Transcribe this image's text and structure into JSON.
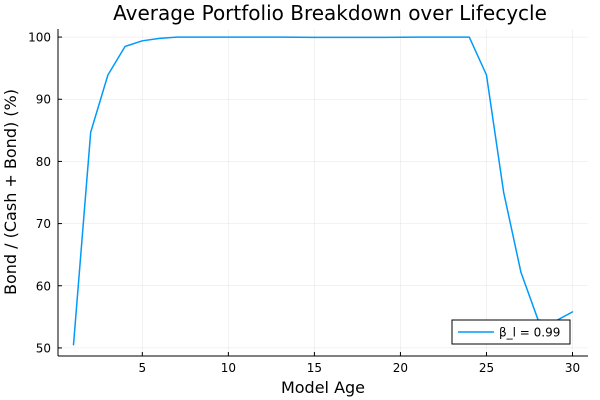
{
  "chart_data": {
    "type": "line",
    "title": "Average Portfolio Breakdown over Lifecycle",
    "xlabel": "Model Age",
    "ylabel": "Bond / (Cash + Bond) (%)",
    "xlim": [
      0.1,
      30.9
    ],
    "ylim": [
      48.7,
      101.3
    ],
    "xticks": [
      5,
      10,
      15,
      20,
      25,
      30
    ],
    "yticks": [
      50,
      60,
      70,
      80,
      90,
      100
    ],
    "grid": true,
    "legend_position": "bottom-right",
    "series": [
      {
        "name": "β_l = 0.99",
        "color": "#009af9",
        "x": [
          1,
          2,
          3,
          4,
          5,
          6,
          7,
          8,
          9,
          10,
          11,
          12,
          13,
          14,
          15,
          16,
          17,
          18,
          19,
          20,
          21,
          22,
          23,
          24,
          25,
          26,
          27,
          28,
          29,
          30
        ],
        "y": [
          50.5,
          84.7,
          93.9,
          98.5,
          99.4,
          99.8,
          100.0,
          100.0,
          100.0,
          100.0,
          100.0,
          100.0,
          100.0,
          99.98,
          99.95,
          99.95,
          99.95,
          99.95,
          99.95,
          99.98,
          100.0,
          100.0,
          100.0,
          100.0,
          93.9,
          75.0,
          62.2,
          54.5,
          54.3,
          55.8
        ]
      }
    ]
  }
}
